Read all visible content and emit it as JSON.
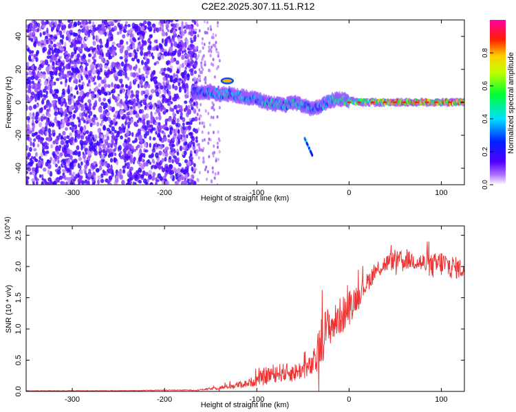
{
  "title": "C2E2.2025.307.11.51.R12",
  "chart_data": [
    {
      "type": "heatmap",
      "xlabel": "Height of straight line (km)",
      "ylabel": "Frequency (Hz)",
      "xlim": [
        -350,
        125
      ],
      "ylim": [
        -50,
        50
      ],
      "xticks": [
        -300,
        -200,
        -100,
        0,
        100
      ],
      "yticks": [
        -40,
        -20,
        0,
        20,
        40
      ],
      "xtick_labels": [
        "-300",
        "-200",
        "-100",
        "0",
        "100"
      ],
      "ytick_labels": [
        "-40",
        "-20",
        "0",
        "20",
        "40"
      ],
      "colorbar": {
        "label": "Normalized spectral amplitude",
        "range": [
          0,
          1
        ],
        "ticks": [
          0.0,
          0.2,
          0.4,
          0.6,
          0.8
        ],
        "tick_labels": [
          "0.0",
          "0.2",
          "0.4",
          "0.6",
          "0.8"
        ],
        "colors": [
          "#ffffff",
          "#7a00ff",
          "#0000ff",
          "#00ffff",
          "#00ff00",
          "#ffff00",
          "#ff8000",
          "#ff0000",
          "#ff00a0"
        ]
      },
      "noise_region_x": [
        -350,
        -165
      ],
      "noise_mean_amplitude": 0.12,
      "signal_track": {
        "x": [
          -170,
          -150,
          -140,
          -130,
          -120,
          -110,
          -100,
          -90,
          -80,
          -70,
          -60,
          -50,
          -40,
          -30,
          -20,
          -10,
          0,
          20,
          40,
          60,
          80,
          100,
          125
        ],
        "freq": [
          6,
          6,
          5,
          5,
          4,
          3,
          2,
          0,
          -1,
          -2,
          0,
          -2,
          -4,
          -2,
          1,
          2,
          1,
          0,
          0,
          0,
          0,
          0,
          0
        ],
        "amplitude": [
          0.25,
          0.4,
          0.45,
          0.45,
          0.45,
          0.4,
          0.4,
          0.45,
          0.5,
          0.45,
          0.5,
          0.45,
          0.4,
          0.4,
          0.5,
          0.6,
          0.6,
          0.75,
          0.8,
          0.85,
          0.85,
          0.85,
          0.85
        ]
      },
      "secondary_feature": {
        "x": [
          -137,
          -127
        ],
        "freq": [
          13,
          13
        ],
        "amplitude": 0.8
      },
      "descending_streak": {
        "x": [
          -48,
          -40
        ],
        "freq": [
          -22,
          -32
        ],
        "amplitude": 0.35
      }
    },
    {
      "type": "line",
      "xlabel": "Height of straight line (km)",
      "ylabel": "SNR (10 * v/v)",
      "y_multiplier": "(x10^4)",
      "xlim": [
        -350,
        125
      ],
      "ylim": [
        0,
        2.65
      ],
      "xticks": [
        -300,
        -200,
        -100,
        0,
        100
      ],
      "yticks": [
        0.0,
        0.5,
        1.0,
        1.5,
        2.0,
        2.5
      ],
      "xtick_labels": [
        "-300",
        "-200",
        "-100",
        "0",
        "100"
      ],
      "ytick_labels": [
        "0.0",
        "0.5",
        "1.0",
        "1.5",
        "2.0",
        "2.5"
      ],
      "color": "#ee3333",
      "series": [
        {
          "x": [
            -350,
            -300,
            -250,
            -200,
            -165,
            -150,
            -130,
            -110,
            -100,
            -90,
            -80,
            -70,
            -60,
            -50,
            -40,
            -35,
            -30,
            -25,
            -20,
            -15,
            -10,
            -5,
            0,
            10,
            20,
            30,
            40,
            50,
            60,
            70,
            80,
            90,
            100,
            110,
            125
          ],
          "values": [
            0.01,
            0.01,
            0.01,
            0.02,
            0.02,
            0.04,
            0.08,
            0.13,
            0.18,
            0.25,
            0.3,
            0.3,
            0.3,
            0.35,
            0.4,
            0.55,
            0.8,
            1.0,
            1.05,
            1.1,
            1.2,
            1.25,
            1.35,
            1.55,
            1.75,
            1.95,
            2.05,
            2.1,
            2.1,
            2.1,
            2.05,
            2.0,
            2.05,
            2.0,
            1.95
          ],
          "noise_amplitude": [
            0.004,
            0.004,
            0.004,
            0.006,
            0.008,
            0.02,
            0.04,
            0.06,
            0.1,
            0.15,
            0.15,
            0.15,
            0.15,
            0.15,
            0.18,
            0.3,
            0.4,
            0.35,
            0.3,
            0.3,
            0.3,
            0.3,
            0.3,
            0.2,
            0.15,
            0.15,
            0.15,
            0.15,
            0.15,
            0.15,
            0.18,
            0.2,
            0.22,
            0.2,
            0.15
          ]
        }
      ]
    }
  ]
}
